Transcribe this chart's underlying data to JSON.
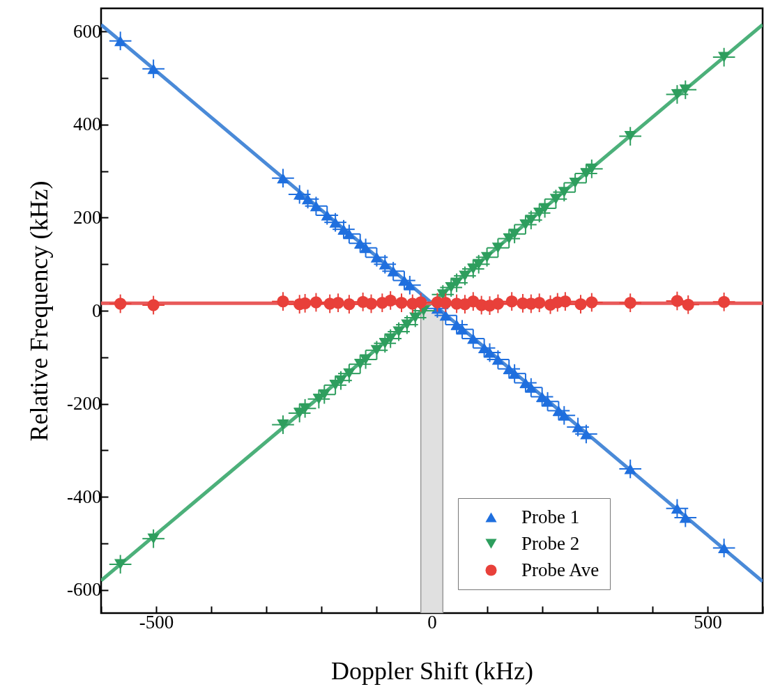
{
  "chart_data": {
    "type": "scatter",
    "xlabel": "Doppler Shift (kHz)",
    "ylabel": "Relative Frequency (kHz)",
    "xlim": [
      -600,
      600
    ],
    "ylim": [
      -650,
      650
    ],
    "xticks": [
      {
        "value": -600,
        "label": null
      },
      -500,
      {
        "value": -400,
        "label": null
      },
      {
        "value": -300,
        "label": null
      },
      {
        "value": -200,
        "label": null
      },
      {
        "value": -100,
        "label": null
      },
      0,
      {
        "value": 100,
        "label": null
      },
      {
        "value": 200,
        "label": null
      },
      {
        "value": 300,
        "label": null
      },
      {
        "value": 400,
        "label": null
      },
      500,
      {
        "value": 600,
        "label": null
      }
    ],
    "yticks": [
      -600,
      {
        "value": -500,
        "label": null
      },
      -400,
      {
        "value": -300,
        "label": null
      },
      -200,
      {
        "value": -100,
        "label": null
      },
      0,
      {
        "value": 100,
        "label": null
      },
      200,
      {
        "value": 300,
        "label": null
      },
      400,
      {
        "value": 500,
        "label": null
      },
      600
    ],
    "grid": false,
    "legend": "bottom right",
    "bands": [
      {
        "axis": "x",
        "from": -20,
        "to": 20,
        "color": "#e0e0e0"
      }
    ],
    "series": [
      {
        "type": "line",
        "color": "#4a8ad8",
        "x": [
          -600,
          600
        ],
        "values": [
          615,
          -582
        ]
      },
      {
        "type": "line",
        "color": "#4cb07a",
        "x": [
          -600,
          600
        ],
        "values": [
          -580,
          615
        ]
      },
      {
        "type": "line",
        "color": "#e85a5a",
        "x": [
          -600,
          600
        ],
        "values": [
          16,
          16
        ]
      },
      {
        "name": "Probe 1",
        "type": "scatter",
        "marker": "triangle",
        "color": "#1f6fde",
        "x": [
          -565,
          -505,
          -270,
          -240,
          -225,
          -210,
          -190,
          -175,
          -160,
          -150,
          -130,
          -120,
          -100,
          -85,
          -70,
          -50,
          -40,
          10,
          25,
          45,
          55,
          75,
          95,
          105,
          120,
          140,
          150,
          170,
          180,
          200,
          210,
          230,
          240,
          265,
          280,
          360,
          445,
          460,
          530
        ],
        "values": [
          580,
          520,
          285,
          250,
          240,
          225,
          205,
          190,
          175,
          165,
          145,
          135,
          115,
          100,
          85,
          65,
          55,
          5,
          -10,
          -30,
          -40,
          -60,
          -80,
          -90,
          -105,
          -125,
          -135,
          -155,
          -165,
          -185,
          -195,
          -215,
          -225,
          -250,
          -265,
          -340,
          -425,
          -445,
          -510
        ],
        "errors": [
          20,
          20,
          20,
          20,
          20,
          20,
          20,
          20,
          20,
          20,
          20,
          20,
          20,
          20,
          20,
          20,
          20,
          20,
          20,
          20,
          20,
          20,
          20,
          20,
          20,
          20,
          20,
          20,
          20,
          20,
          20,
          20,
          20,
          20,
          20,
          20,
          20,
          20,
          20
        ],
        "xerrors": [
          20,
          20,
          20,
          20,
          20,
          20,
          20,
          20,
          20,
          20,
          20,
          20,
          20,
          20,
          20,
          20,
          20,
          20,
          20,
          20,
          20,
          20,
          20,
          20,
          20,
          20,
          20,
          20,
          20,
          20,
          20,
          20,
          20,
          20,
          20,
          20,
          20,
          20,
          20
        ]
      },
      {
        "name": "Probe 2",
        "type": "scatter",
        "marker": "triangle-down",
        "color": "#2e9e5e",
        "x": [
          -565,
          -505,
          -270,
          -240,
          -230,
          -205,
          -195,
          -175,
          -165,
          -150,
          -130,
          -120,
          -100,
          -85,
          -75,
          -60,
          -45,
          -30,
          -15,
          20,
          35,
          45,
          60,
          75,
          85,
          100,
          120,
          140,
          150,
          170,
          180,
          195,
          205,
          225,
          240,
          260,
          280,
          290,
          360,
          445,
          460,
          530
        ],
        "values": [
          -545,
          -490,
          -245,
          -220,
          -210,
          -190,
          -180,
          -160,
          -150,
          -135,
          -115,
          -105,
          -85,
          -70,
          -60,
          -45,
          -30,
          -15,
          0,
          35,
          50,
          60,
          75,
          90,
          100,
          115,
          135,
          155,
          165,
          185,
          195,
          210,
          220,
          240,
          255,
          275,
          295,
          305,
          375,
          465,
          475,
          545
        ],
        "errors": [
          20,
          20,
          20,
          20,
          20,
          20,
          20,
          20,
          20,
          20,
          20,
          20,
          20,
          20,
          20,
          20,
          20,
          20,
          20,
          20,
          20,
          20,
          20,
          20,
          20,
          20,
          20,
          20,
          20,
          20,
          20,
          20,
          20,
          20,
          20,
          20,
          20,
          20,
          20,
          20,
          20,
          20
        ],
        "xerrors": [
          20,
          20,
          20,
          20,
          20,
          20,
          20,
          20,
          20,
          20,
          20,
          20,
          20,
          20,
          20,
          20,
          20,
          20,
          20,
          20,
          20,
          20,
          20,
          20,
          20,
          20,
          20,
          20,
          20,
          20,
          20,
          20,
          20,
          20,
          20,
          20,
          20,
          20,
          20,
          20,
          20,
          20
        ]
      },
      {
        "name": "Probe Ave",
        "type": "scatter",
        "marker": "circle",
        "color": "#e8403a",
        "x": [
          -565,
          -505,
          -270,
          -240,
          -230,
          -210,
          -185,
          -170,
          -150,
          -125,
          -110,
          -90,
          -75,
          -55,
          -35,
          -20,
          10,
          25,
          45,
          60,
          75,
          90,
          105,
          120,
          145,
          165,
          180,
          195,
          215,
          228,
          242,
          270,
          290,
          360,
          445,
          465,
          530
        ],
        "values": [
          15,
          12,
          20,
          14,
          16,
          18,
          15,
          17,
          14,
          19,
          15,
          17,
          22,
          17,
          15,
          18,
          18,
          17,
          15,
          14,
          20,
          12,
          11,
          15,
          20,
          16,
          15,
          17,
          13,
          18,
          20,
          14,
          18,
          17,
          21,
          13,
          19
        ],
        "errors": [
          20,
          20,
          20,
          20,
          20,
          20,
          20,
          20,
          20,
          20,
          20,
          20,
          20,
          20,
          20,
          20,
          20,
          20,
          20,
          20,
          20,
          20,
          20,
          20,
          20,
          20,
          20,
          20,
          20,
          20,
          20,
          20,
          20,
          20,
          20,
          20,
          20
        ],
        "xerrors": [
          20,
          20,
          20,
          20,
          20,
          20,
          20,
          20,
          20,
          20,
          20,
          20,
          20,
          20,
          20,
          20,
          20,
          20,
          20,
          20,
          20,
          20,
          20,
          20,
          20,
          20,
          20,
          20,
          20,
          20,
          20,
          20,
          20,
          20,
          20,
          20,
          20
        ]
      }
    ]
  }
}
